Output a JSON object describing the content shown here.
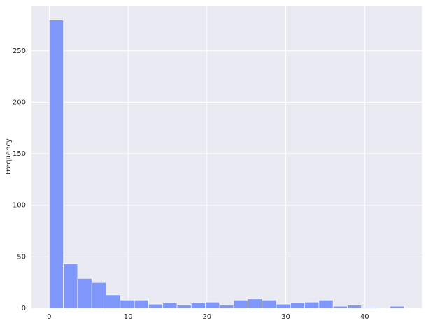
{
  "chart_data": {
    "type": "histogram",
    "y_label": "Frequency",
    "bins": [
      0,
      1.8,
      3.6,
      5.4,
      7.2,
      9,
      10.8,
      12.6,
      14.4,
      16.2,
      18,
      19.8,
      21.6,
      23.4,
      25.2,
      27,
      28.8,
      30.6,
      32.4,
      34.2,
      36,
      37.8,
      39.6,
      41.4,
      43.2,
      45
    ],
    "values": [
      280,
      43,
      29,
      25,
      13,
      8,
      8,
      4,
      5,
      3,
      5,
      6,
      3,
      8,
      9,
      8,
      4,
      5,
      6,
      8,
      2,
      3,
      1,
      0,
      2
    ],
    "color": "#7f96fa",
    "xlim": [
      -2.25,
      47.25
    ],
    "ylim": [
      0,
      294
    ],
    "xticks": [
      0,
      10,
      20,
      30,
      40
    ],
    "yticks": [
      0,
      50,
      100,
      150,
      200,
      250
    ],
    "grid": true
  }
}
